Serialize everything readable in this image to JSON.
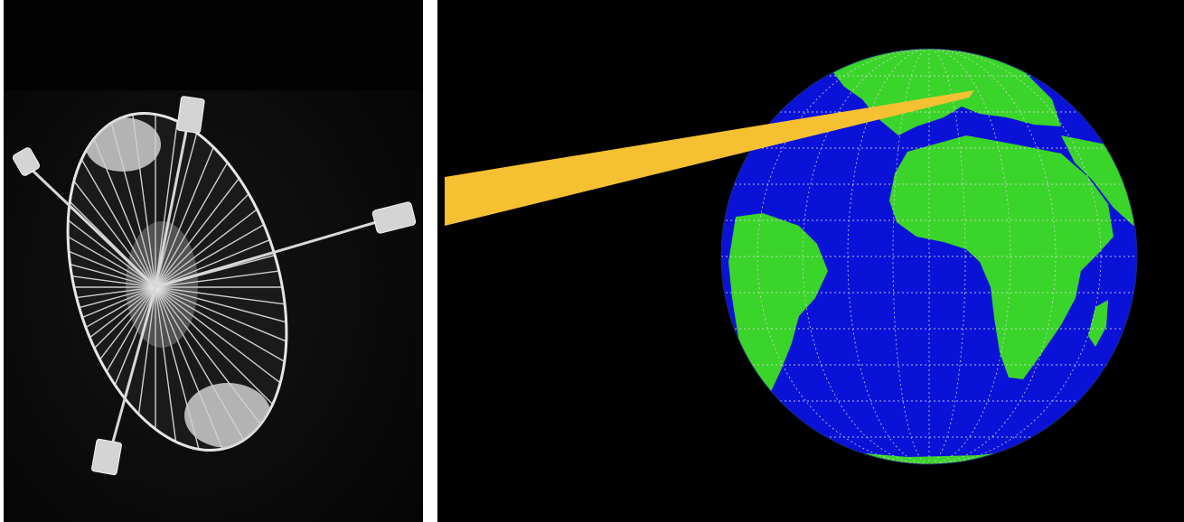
{
  "image": {
    "description_hidden": "",
    "colors": {
      "background": "#000000",
      "divider": "#ffffff",
      "beam": "#f6c033",
      "ocean": "#0a12d8",
      "land": "#3bd42a",
      "graticule": "#d8d8d8",
      "dish_wire": "#e8e8e8"
    }
  }
}
